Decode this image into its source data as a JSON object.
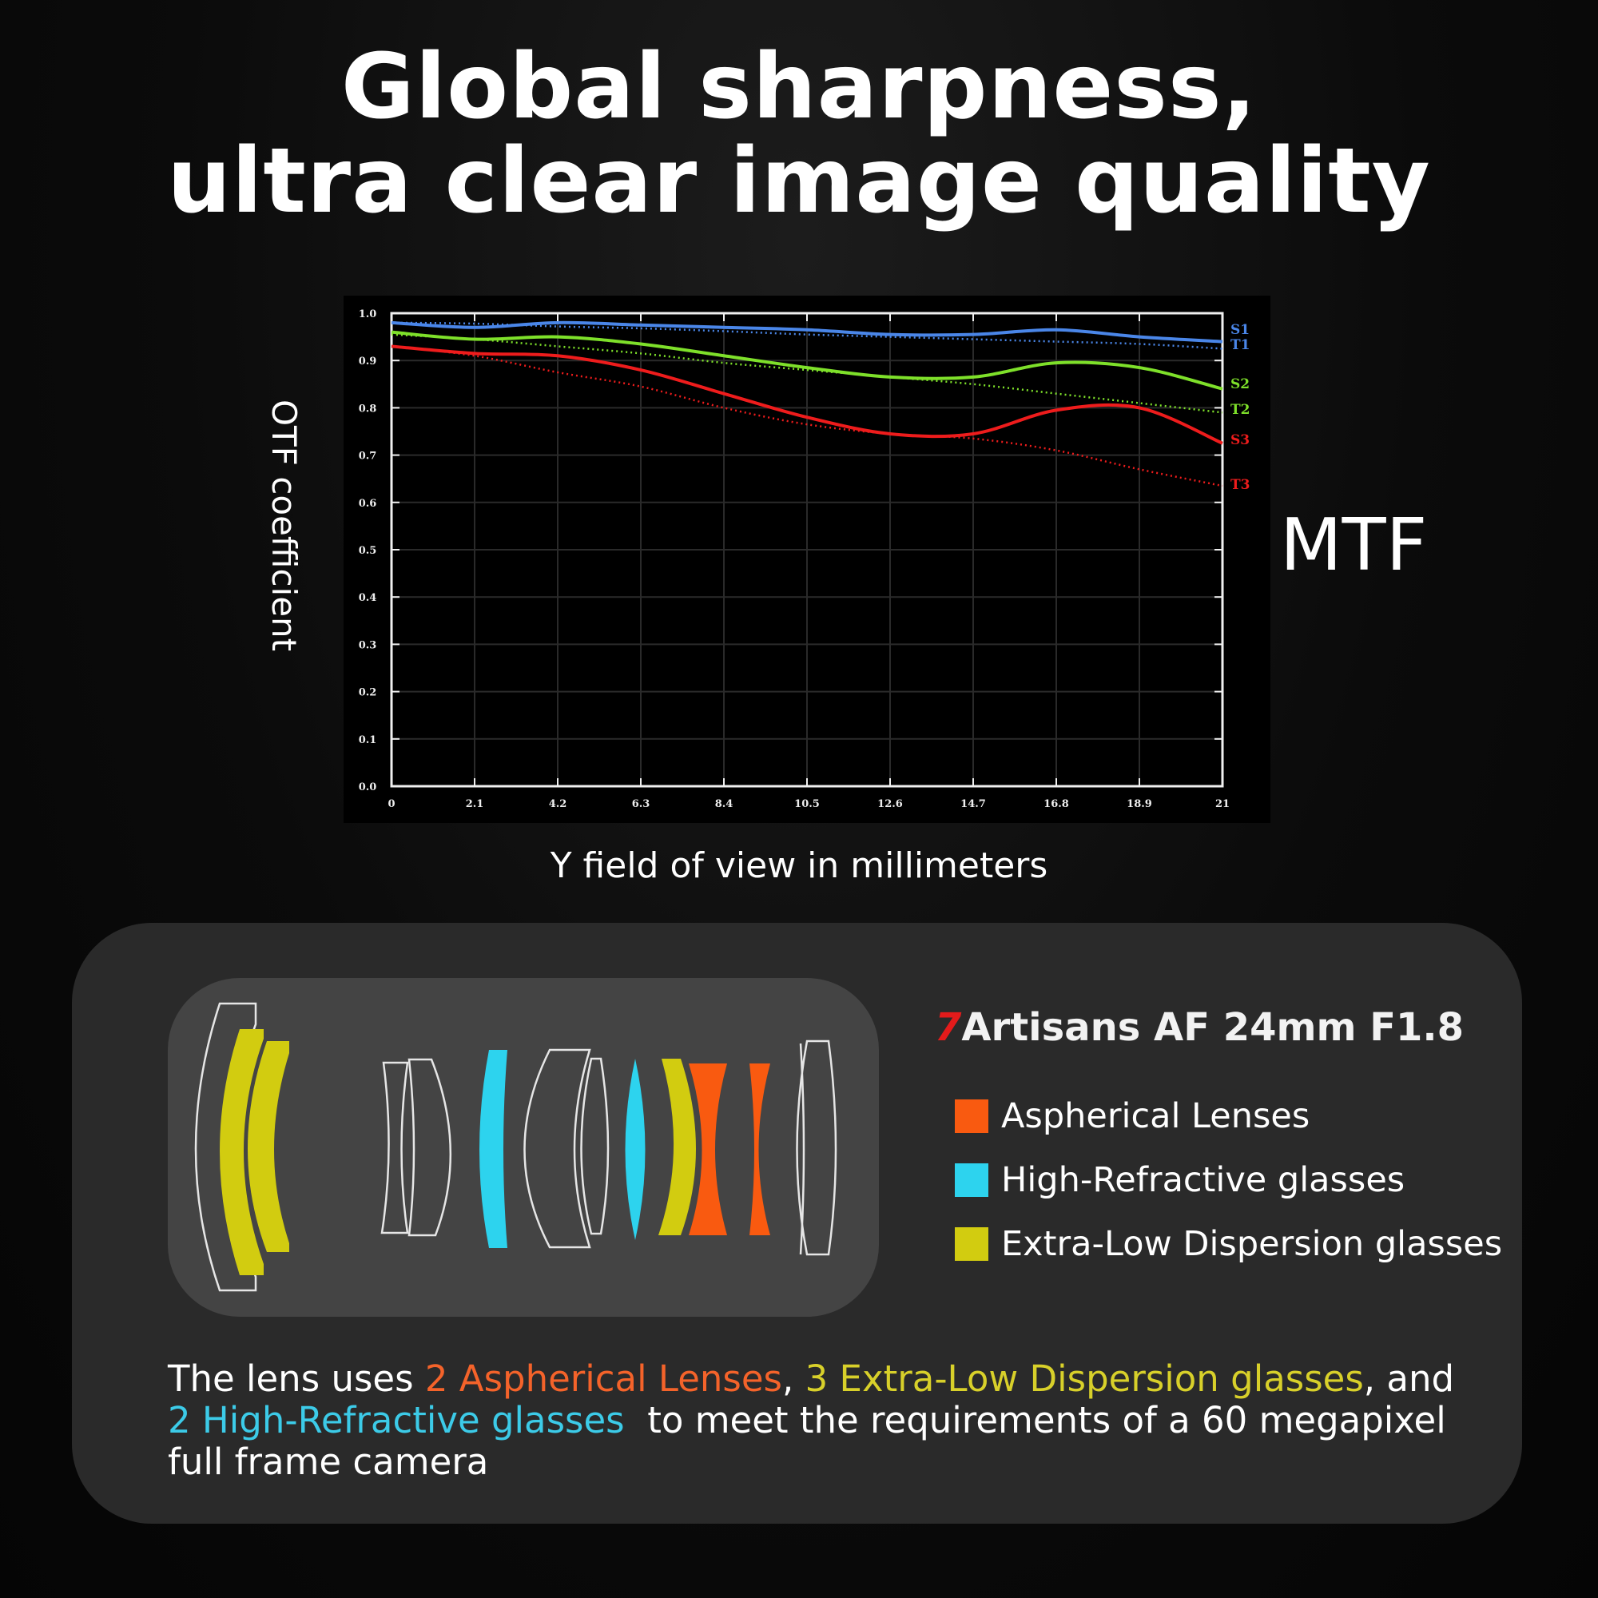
{
  "headline": {
    "line1": "Global sharpness,",
    "line2": "ultra clear image quality"
  },
  "chart_labels": {
    "y_axis_title": "OTF coefficient",
    "x_axis_title": "Y field of view in millimeters",
    "side_label": "MTF"
  },
  "chart_data": {
    "type": "line",
    "title": "MTF",
    "xlabel": "Y field of view in millimeters",
    "ylabel": "OTF coefficient",
    "x": [
      0,
      2.1,
      4.2,
      6.3,
      8.4,
      10.5,
      12.6,
      14.7,
      16.8,
      18.9,
      21
    ],
    "x_ticks": [
      "0",
      "2.1",
      "4.2",
      "6.3",
      "8.4",
      "10.5",
      "12.6",
      "14.7",
      "16.8",
      "18.9",
      "21"
    ],
    "y_ticks": [
      "0.0",
      "0.1",
      "0.2",
      "0.3",
      "0.4",
      "0.5",
      "0.6",
      "0.7",
      "0.8",
      "0.9",
      "1.0"
    ],
    "xlim": [
      0,
      21
    ],
    "ylim": [
      0,
      1.0
    ],
    "grid": true,
    "legend_position": "right-end-labels",
    "series": [
      {
        "name": "S1",
        "color": "#4a86e8",
        "style": "solid",
        "values": [
          0.98,
          0.97,
          0.98,
          0.975,
          0.97,
          0.965,
          0.955,
          0.955,
          0.965,
          0.95,
          0.94
        ]
      },
      {
        "name": "T1",
        "color": "#4a86e8",
        "style": "dotted",
        "values": [
          0.98,
          0.978,
          0.972,
          0.968,
          0.962,
          0.955,
          0.95,
          0.945,
          0.94,
          0.935,
          0.925
        ]
      },
      {
        "name": "S2",
        "color": "#7ee02a",
        "style": "solid",
        "values": [
          0.96,
          0.945,
          0.95,
          0.935,
          0.91,
          0.885,
          0.865,
          0.865,
          0.895,
          0.885,
          0.84
        ]
      },
      {
        "name": "T2",
        "color": "#7ee02a",
        "style": "dotted",
        "values": [
          0.955,
          0.945,
          0.93,
          0.915,
          0.895,
          0.88,
          0.865,
          0.85,
          0.83,
          0.81,
          0.79
        ]
      },
      {
        "name": "S3",
        "color": "#ee1c1c",
        "style": "solid",
        "values": [
          0.93,
          0.915,
          0.91,
          0.88,
          0.83,
          0.78,
          0.745,
          0.745,
          0.795,
          0.8,
          0.725
        ]
      },
      {
        "name": "T3",
        "color": "#ee1c1c",
        "style": "dotted",
        "values": [
          0.93,
          0.91,
          0.875,
          0.845,
          0.8,
          0.765,
          0.745,
          0.735,
          0.71,
          0.67,
          0.635
        ]
      }
    ]
  },
  "product": {
    "brand_mark": "7",
    "title_rest": "Artisans AF 24mm F1.8"
  },
  "legend": [
    {
      "label": "Aspherical Lenses",
      "color": "#f95a10"
    },
    {
      "label": "High-Refractive glasses",
      "color": "#2dd3ee"
    },
    {
      "label": "Extra-Low Dispersion glasses",
      "color": "#d2cc10"
    }
  ],
  "description": {
    "part1": "The lens uses ",
    "aspherical": "2 Aspherical Lenses",
    "part2": ", ",
    "ed": "3 Extra-Low Dispersion glasses",
    "part3": ", and",
    "hr": "2 High-Refractive glasses",
    "part4": "  to meet the requirements of a 60 megapixel full frame camera",
    "colors": {
      "aspherical": "#f4632a",
      "ed": "#d8d02a",
      "hr": "#3ccbe8"
    }
  }
}
